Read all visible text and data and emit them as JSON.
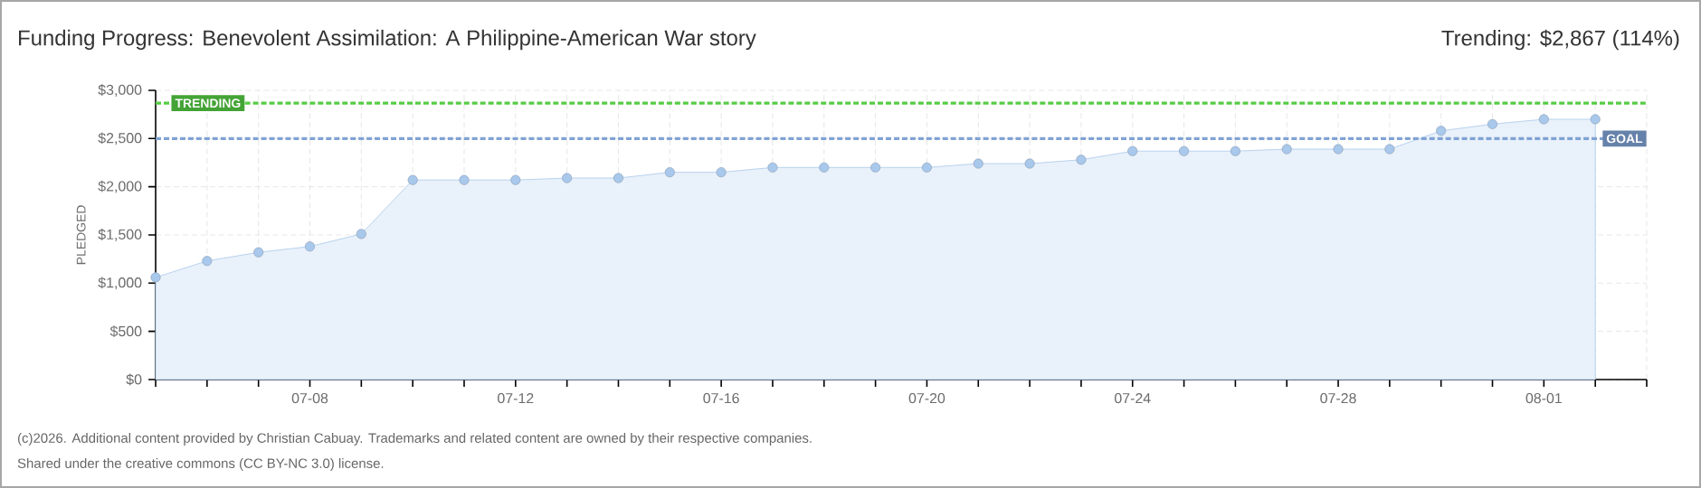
{
  "chart_data": {
    "type": "area",
    "title": "Funding Progress: Benevolent Assimilation: A Philippine-American War story",
    "subtitle": "Trending: $2,867 (114%)",
    "ylabel": "PLEDGED",
    "categories": [
      null,
      null,
      null,
      "07-08",
      null,
      null,
      null,
      "07-12",
      null,
      null,
      null,
      "07-16",
      null,
      null,
      null,
      "07-20",
      null,
      null,
      null,
      "07-24",
      null,
      null,
      null,
      "07-28",
      null,
      null,
      null,
      "08-01",
      null
    ],
    "series": [
      {
        "color": "#a8c8ec",
        "values": [
          1060,
          1230,
          1320,
          1380,
          1510,
          2070,
          2070,
          2070,
          2090,
          2090,
          2150,
          2150,
          2200,
          2200,
          2200,
          2200,
          2240,
          2240,
          2280,
          2370,
          2370,
          2370,
          2390,
          2390,
          2390,
          2580,
          2650,
          2700,
          2700
        ]
      }
    ],
    "ylim": [
      0,
      3000
    ],
    "yticks": [
      {
        "value": 0,
        "label": "$0"
      },
      {
        "value": 500,
        "label": "$500"
      },
      {
        "value": 1000,
        "label": "$1,000"
      },
      {
        "value": 1500,
        "label": "$1,500"
      },
      {
        "value": 2000,
        "label": "$2,000"
      },
      {
        "value": 2500,
        "label": "$2,500"
      },
      {
        "value": 3000,
        "label": "$3,000"
      }
    ],
    "ref_lines": [
      {
        "axis": "y",
        "value": 2867,
        "label": "TRENDING",
        "color": "#55cc44",
        "line_style": "dashed"
      },
      {
        "axis": "y",
        "value": 2500,
        "label": "GOAL",
        "color": "#7fa3d4",
        "line_style": "dashed"
      }
    ],
    "grid": true,
    "marker": "circle",
    "annotations": [
      "(c)2026. Additional content provided by Christian Cabuay. Trademarks and related content are owned by their respective companies.",
      "Shared under the creative commons (CC BY-NC 3.0) license."
    ]
  }
}
